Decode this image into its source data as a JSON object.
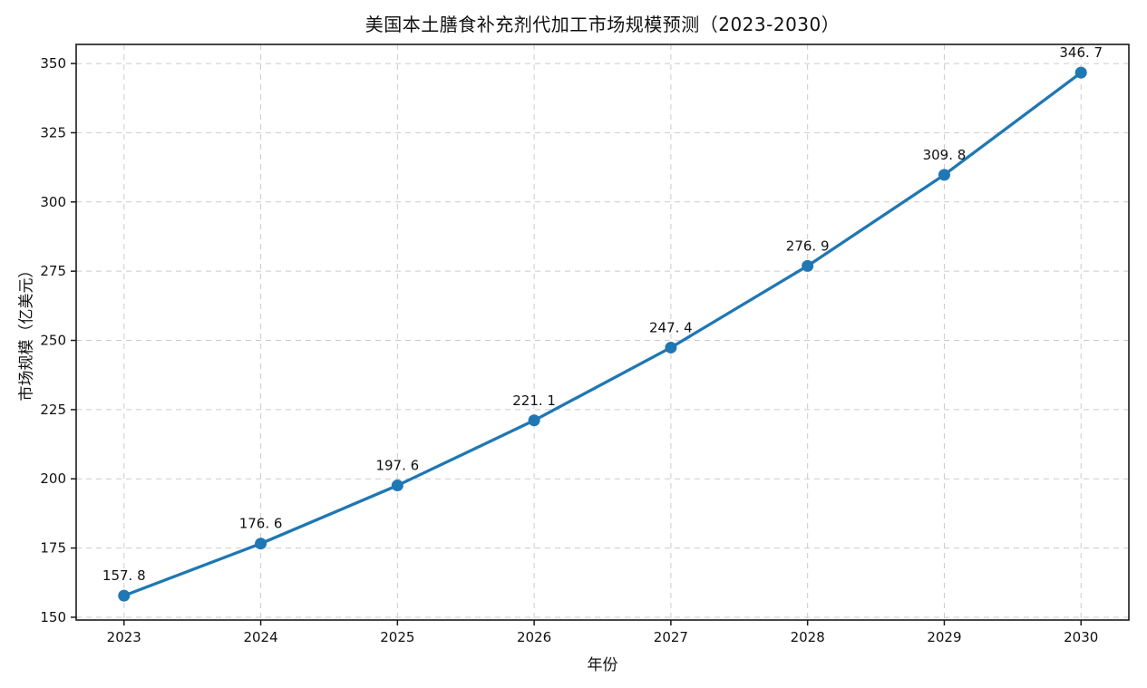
{
  "figure": {
    "title": "美国本土膳食补充剂代加工市场规模预测（2023-2030）",
    "xlabel": "年份",
    "ylabel": "市场规模（亿美元）"
  },
  "chart_data": {
    "type": "line",
    "title": "美国本土膳食补充剂代加工市场规模预测（2023-2030）",
    "xlabel": "年份",
    "ylabel": "市场规模（亿美元）",
    "x": [
      2023,
      2024,
      2025,
      2026,
      2027,
      2028,
      2029,
      2030
    ],
    "values": [
      157.8,
      176.6,
      197.6,
      221.1,
      247.4,
      276.9,
      309.8,
      346.7
    ],
    "point_labels": [
      "157. 8",
      "176. 6",
      "197. 6",
      "221. 1",
      "247. 4",
      "276. 9",
      "309. 8",
      "346. 7"
    ],
    "xtick_labels": [
      "2023",
      "2024",
      "2025",
      "2026",
      "2027",
      "2028",
      "2029",
      "2030"
    ],
    "ytick_values": [
      150,
      175,
      200,
      225,
      250,
      275,
      300,
      325,
      350
    ],
    "ytick_labels": [
      "150",
      "175",
      "200",
      "225",
      "250",
      "275",
      "300",
      "325",
      "350"
    ],
    "xlim": [
      2022.65,
      2030.35
    ],
    "ylim": [
      149.0,
      356.9
    ],
    "grid": true,
    "grid_style": "dashed",
    "legend": false,
    "line_color": "#1f77b4",
    "marker": "circle",
    "line_width": 3.3,
    "marker_radius": 6.5
  }
}
